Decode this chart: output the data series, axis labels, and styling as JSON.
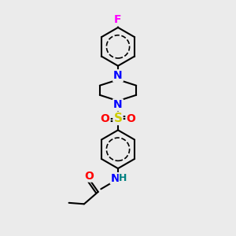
{
  "background_color": "#ebebeb",
  "figsize": [
    3.0,
    3.0
  ],
  "dpi": 100,
  "colors": {
    "N": "#0000ff",
    "O": "#ff0000",
    "S": "#cccc00",
    "F": "#ff00ff",
    "C": "#000000",
    "H": "#008080"
  }
}
